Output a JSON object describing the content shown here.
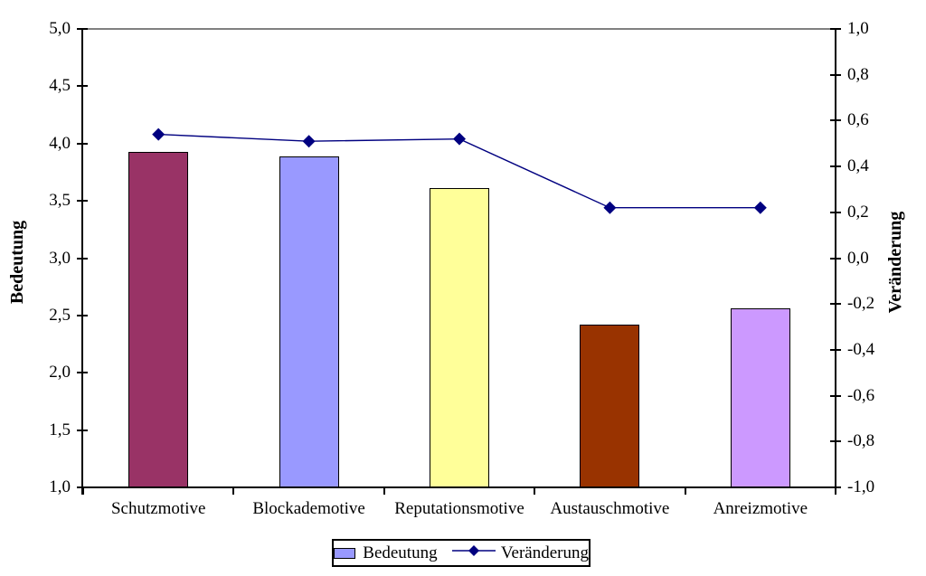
{
  "chart_data": {
    "type": "bar",
    "subtype": "combo-bar-line-two-axes",
    "categories": [
      "Schutzmotive",
      "Blockademotive",
      "Reputationsmotive",
      "Austauschmotive",
      "Anreizmotive"
    ],
    "series": [
      {
        "name": "Bedeutung",
        "type": "bar",
        "axis": "left",
        "values": [
          3.93,
          3.89,
          3.61,
          2.42,
          2.56
        ],
        "bar_colors": [
          "#993366",
          "#9999FF",
          "#FFFF99",
          "#993300",
          "#CC99FF"
        ],
        "bar_border_color": "#000000"
      },
      {
        "name": "Veränderung",
        "type": "line",
        "axis": "right",
        "values": [
          0.54,
          0.51,
          0.52,
          0.22,
          0.22
        ],
        "color": "#000080",
        "marker": "diamond"
      }
    ],
    "left_axis": {
      "label": "Bedeutung",
      "min": 1.0,
      "max": 5.0,
      "step": 0.5,
      "tick_labels": [
        "5,0",
        "4,5",
        "4,0",
        "3,5",
        "3,0",
        "2,5",
        "2,0",
        "1,5",
        "1,0"
      ]
    },
    "right_axis": {
      "label": "Veränderung",
      "min": -1.0,
      "max": 1.0,
      "step": 0.2,
      "tick_labels": [
        "1,0",
        "0,8",
        "0,6",
        "0,4",
        "0,2",
        "0,0",
        "-0,2",
        "-0,4",
        "-0,6",
        "-0,8",
        "-1,0"
      ]
    },
    "legend": {
      "items": [
        {
          "label": "Bedeutung",
          "swatch": "bar",
          "swatch_color": "#9999FF"
        },
        {
          "label": "Veränderung",
          "swatch": "line-diamond",
          "swatch_color": "#000080"
        }
      ]
    },
    "gridline_color": "#808080",
    "background": "#FFFFFF"
  }
}
